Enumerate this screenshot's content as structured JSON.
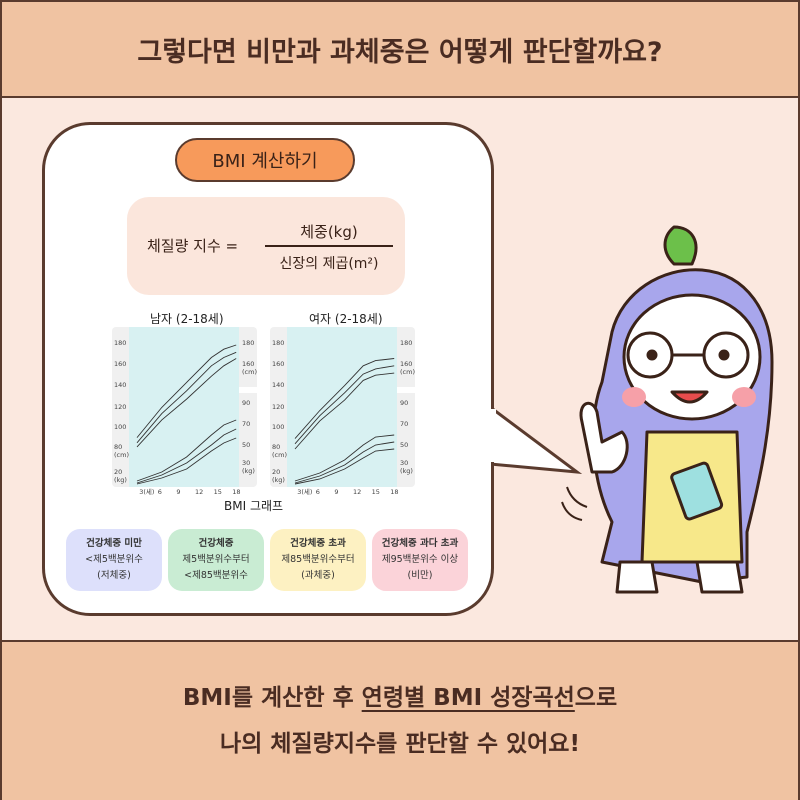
{
  "header": {
    "title": "그렇다면 비만과 과체중은 어떻게 판단할까요?"
  },
  "card": {
    "button": "BMI 계산하기",
    "formula": {
      "lhs": "체질량 지수 =",
      "numerator": "체중(kg)",
      "denominator": "신장의 제곱(m²)"
    },
    "graph_caption": "BMI 그래프"
  },
  "chart_data": [
    {
      "type": "line",
      "title": "남자 (2-18세)",
      "x_ticks": [
        "3(세)",
        "6",
        "9",
        "12",
        "15",
        "18"
      ],
      "left_ticks": [
        "180",
        "160",
        "140",
        "120",
        "100",
        "80\n(cm)",
        "20\n(kg)"
      ],
      "right_ticks": [
        "180",
        "160\n(cm)",
        "90",
        "70",
        "50",
        "30\n(kg)"
      ],
      "height_cm": {
        "x": [
          2,
          6,
          10,
          14,
          16,
          18
        ],
        "series": [
          [
            82,
            108,
            128,
            150,
            160,
            167
          ],
          [
            86,
            114,
            136,
            160,
            168,
            173
          ],
          [
            91,
            120,
            144,
            168,
            176,
            180
          ]
        ]
      },
      "weight_kg": {
        "x": [
          2,
          6,
          10,
          14,
          16,
          18
        ],
        "series": [
          [
            10,
            17,
            26,
            44,
            52,
            57
          ],
          [
            12,
            20,
            32,
            50,
            60,
            66
          ],
          [
            14,
            23,
            38,
            60,
            70,
            75
          ]
        ]
      }
    },
    {
      "type": "line",
      "title": "여자 (2-18세)",
      "x_ticks": [
        "3(세)",
        "6",
        "9",
        "12",
        "15",
        "18"
      ],
      "left_ticks": [
        "180",
        "160",
        "140",
        "120",
        "100",
        "80\n(cm)",
        "20\n(kg)"
      ],
      "right_ticks": [
        "180",
        "160\n(cm)",
        "90",
        "70",
        "50",
        "30\n(kg)"
      ],
      "height_cm": {
        "x": [
          2,
          6,
          10,
          13,
          15,
          18
        ],
        "series": [
          [
            80,
            107,
            127,
            146,
            151,
            153
          ],
          [
            85,
            112,
            134,
            152,
            157,
            160
          ],
          [
            90,
            117,
            141,
            160,
            165,
            167
          ]
        ]
      },
      "weight_kg": {
        "x": [
          2,
          6,
          10,
          13,
          15,
          18
        ],
        "series": [
          [
            10,
            16,
            26,
            37,
            44,
            46
          ],
          [
            12,
            19,
            30,
            43,
            50,
            53
          ],
          [
            14,
            22,
            35,
            50,
            58,
            60
          ]
        ]
      }
    }
  ],
  "categories": [
    {
      "title": "건강체중 미만",
      "lines": [
        "<제5백분위수",
        "(저체중)"
      ],
      "color": "#dde0fb"
    },
    {
      "title": "건강체중",
      "lines": [
        "제5백분위수부터",
        "<제85백분위수"
      ],
      "color": "#c9ecd3"
    },
    {
      "title": "건강체중 초과",
      "lines": [
        "제85백분위수부터",
        "(과체중)"
      ],
      "color": "#fdf1c2"
    },
    {
      "title": "건강체중 과다 초과",
      "lines": [
        "제95백분위수 이상",
        "(비만)"
      ],
      "color": "#fbd3d9"
    }
  ],
  "footer": {
    "line1_pre": "BMI를 계산한 후 ",
    "line1_emph": "연령별 BMI 성장곡선",
    "line1_post": "으로",
    "line2": "나의 체질량지수를 판단할 수 있어요!"
  }
}
